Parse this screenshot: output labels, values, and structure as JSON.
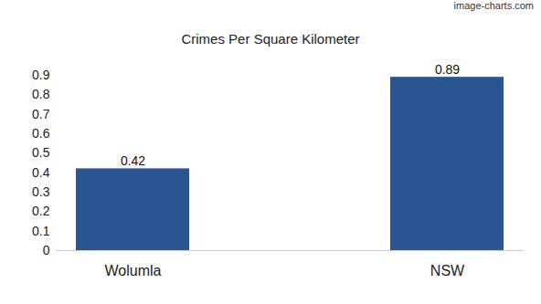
{
  "chart_data": {
    "type": "bar",
    "title": "Crimes Per Square Kilometer",
    "annotation": "image-charts.com",
    "categories": [
      "Wolumla",
      "NSW"
    ],
    "values": [
      0.42,
      0.89
    ],
    "color": "#2b5590",
    "ylim": [
      0,
      0.9
    ],
    "yticks": [
      0,
      0.1,
      0.2,
      0.3,
      0.4,
      0.5,
      0.6,
      0.7,
      0.8,
      0.9
    ],
    "grid": false,
    "data_labels": true
  }
}
